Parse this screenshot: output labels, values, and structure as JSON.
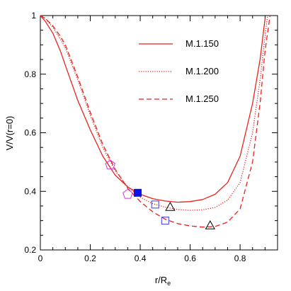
{
  "chart_data": {
    "type": "line",
    "xlabel": "r/R",
    "xlabel_subscript": "e",
    "ylabel": "V/V(r=0)",
    "xlim": [
      0,
      0.95
    ],
    "ylim": [
      0.2,
      1.0
    ],
    "x_ticks": [
      0,
      0.2,
      0.4,
      0.6,
      0.8
    ],
    "y_ticks": [
      0.2,
      0.4,
      0.6,
      0.8,
      1.0
    ],
    "x_tick_labels": [
      "0",
      "0.2",
      "0.4",
      "0.6",
      "0.8"
    ],
    "y_tick_labels": [
      "0.2",
      "0.4",
      "0.6",
      "0.8",
      "1"
    ],
    "grid": false,
    "legend_position": "top-right",
    "line_color": "#e8231f",
    "series": [
      {
        "name": "M.1.150",
        "style": "solid",
        "x": [
          0,
          0.02,
          0.05,
          0.08,
          0.1,
          0.15,
          0.2,
          0.25,
          0.3,
          0.35,
          0.4,
          0.45,
          0.5,
          0.55,
          0.6,
          0.65,
          0.7,
          0.75,
          0.8,
          0.85,
          0.88,
          0.9
        ],
        "y": [
          1.0,
          0.98,
          0.94,
          0.88,
          0.83,
          0.71,
          0.61,
          0.52,
          0.455,
          0.415,
          0.39,
          0.375,
          0.367,
          0.363,
          0.365,
          0.372,
          0.39,
          0.43,
          0.52,
          0.7,
          0.85,
          0.99
        ]
      },
      {
        "name": "M.1.200",
        "style": "dotted",
        "x": [
          0,
          0.02,
          0.05,
          0.08,
          0.1,
          0.15,
          0.2,
          0.25,
          0.3,
          0.35,
          0.4,
          0.45,
          0.5,
          0.55,
          0.6,
          0.65,
          0.7,
          0.75,
          0.8,
          0.85,
          0.88,
          0.9,
          0.91
        ],
        "y": [
          1.0,
          0.99,
          0.96,
          0.92,
          0.89,
          0.78,
          0.66,
          0.55,
          0.47,
          0.415,
          0.38,
          0.358,
          0.346,
          0.338,
          0.335,
          0.337,
          0.345,
          0.37,
          0.43,
          0.6,
          0.78,
          0.93,
          1.0
        ]
      },
      {
        "name": "M.1.250",
        "style": "dashed",
        "x": [
          0,
          0.02,
          0.05,
          0.08,
          0.1,
          0.15,
          0.2,
          0.25,
          0.3,
          0.35,
          0.4,
          0.45,
          0.5,
          0.55,
          0.6,
          0.65,
          0.7,
          0.75,
          0.8,
          0.85,
          0.88,
          0.9,
          0.92
        ],
        "y": [
          1.0,
          0.99,
          0.965,
          0.93,
          0.9,
          0.79,
          0.67,
          0.56,
          0.475,
          0.41,
          0.365,
          0.33,
          0.305,
          0.29,
          0.282,
          0.278,
          0.28,
          0.295,
          0.34,
          0.5,
          0.7,
          0.88,
          1.0
        ]
      }
    ],
    "markers": [
      {
        "shape": "pentagon",
        "color": "#d633d6",
        "x": 0.28,
        "y": 0.49
      },
      {
        "shape": "pentagon",
        "color": "#d633d6",
        "x": 0.35,
        "y": 0.39
      },
      {
        "shape": "filled-square",
        "color": "#0a10e8",
        "x": 0.39,
        "y": 0.395
      },
      {
        "shape": "open-square",
        "color": "#3a3ad8",
        "x": 0.46,
        "y": 0.355
      },
      {
        "shape": "open-square",
        "color": "#3a3ad8",
        "x": 0.5,
        "y": 0.3
      },
      {
        "shape": "triangle",
        "color": "#000000",
        "x": 0.52,
        "y": 0.345
      },
      {
        "shape": "triangle",
        "color": "#000000",
        "x": 0.68,
        "y": 0.282
      }
    ]
  }
}
